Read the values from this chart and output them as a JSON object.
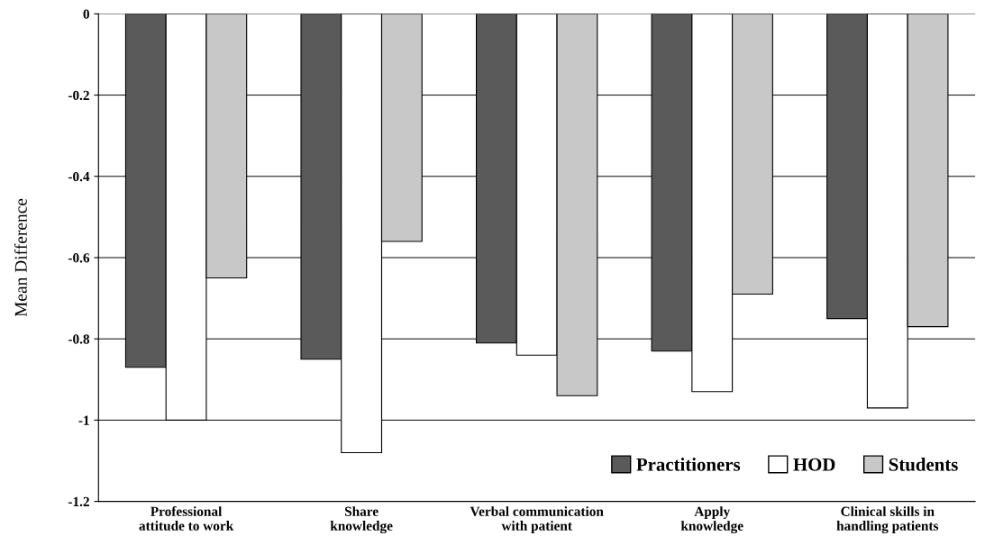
{
  "chart_data": {
    "type": "bar",
    "ylabel": "Mean Difference",
    "categories": [
      "Professional\nattitude to work",
      "Share\nknowledge",
      "Verbal communication\nwith patient",
      "Apply\nknowledge",
      "Clinical skills in\nhandling patients"
    ],
    "series": [
      {
        "name": "Practitioners",
        "color": "#5a5a5a",
        "values": [
          -0.87,
          -0.85,
          -0.81,
          -0.83,
          -0.75
        ]
      },
      {
        "name": "HOD",
        "color": "#ffffff",
        "values": [
          -1.0,
          -1.08,
          -0.84,
          -0.93,
          -0.97
        ]
      },
      {
        "name": "Students",
        "color": "#c8c8c8",
        "values": [
          -0.65,
          -0.56,
          -0.94,
          -0.69,
          -0.77
        ]
      }
    ],
    "ylim": [
      -1.2,
      0
    ],
    "yticks": [
      -1.2,
      -1,
      -0.8,
      -0.6,
      -0.4,
      -0.2,
      0
    ],
    "grid": "y",
    "legend": "bottom right"
  }
}
